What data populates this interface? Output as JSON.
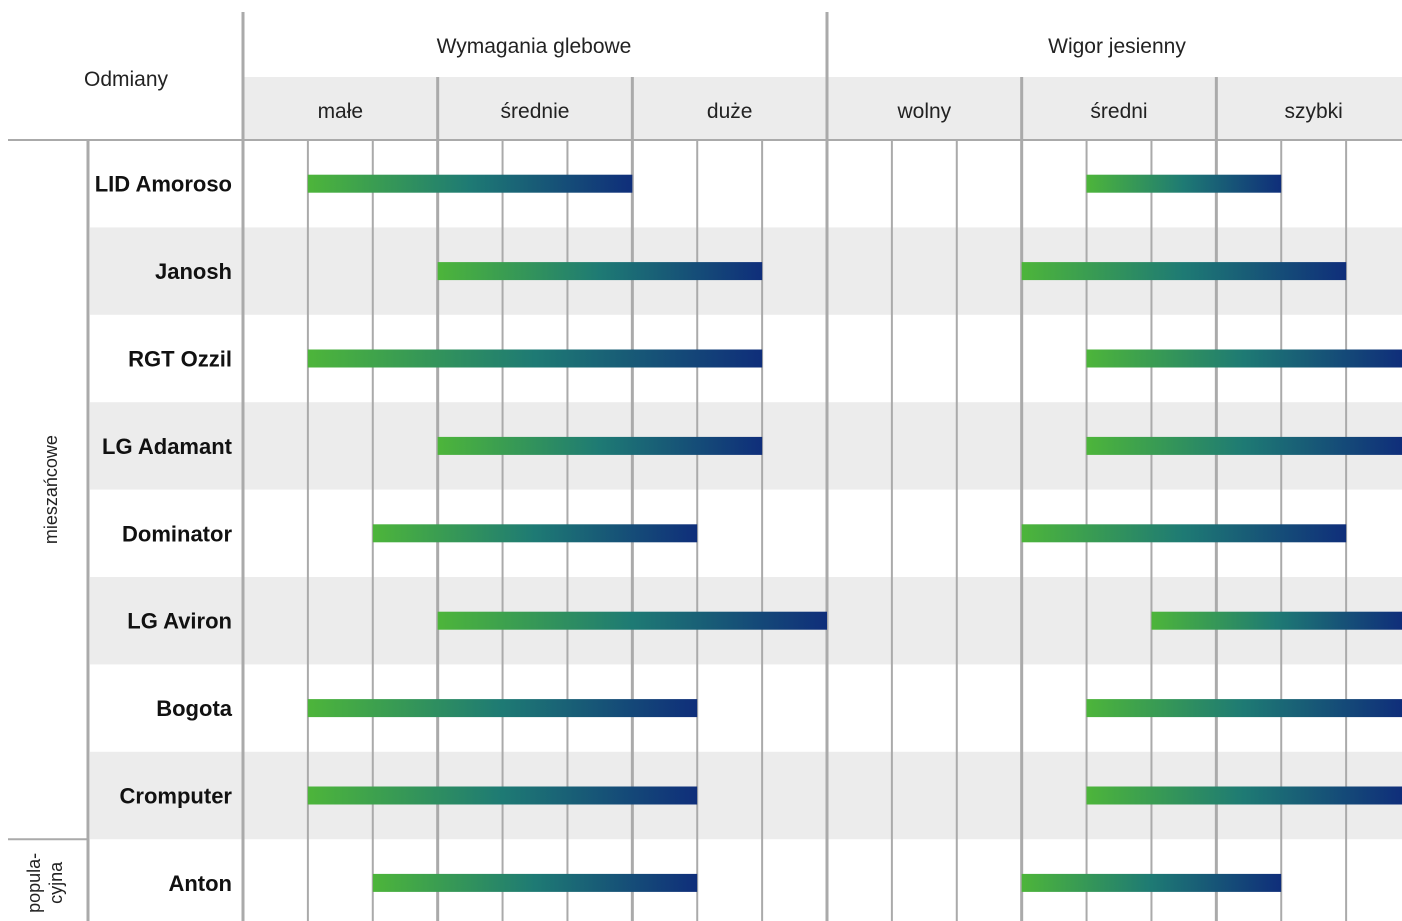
{
  "header": {
    "varieties_label": "Odmiany",
    "section1_title": "Wymagania glebowe",
    "section2_title": "Wigor jesienny"
  },
  "chart_data": {
    "type": "range-bar",
    "sections": [
      {
        "title": "Wymagania glebowe",
        "levels": [
          "małe",
          "średnie",
          "duże"
        ]
      },
      {
        "title": "Wigor jesienny",
        "levels": [
          "wolny",
          "średni",
          "szybki"
        ]
      }
    ],
    "subdivisions_per_level": 3,
    "groups": [
      {
        "name": "mieszańcowe",
        "rows": [
          "LID Amoroso",
          "Janosh",
          "RGT Ozzil",
          "LG Adamant",
          "Dominator",
          "LG Aviron",
          "Bogota",
          "Cromputer"
        ]
      },
      {
        "name": "popula-\ncyjna",
        "name_lines": [
          "popula-",
          "cyjna"
        ],
        "rows": [
          "Anton"
        ]
      }
    ],
    "note": "Bar ranges expressed in level units: 0 = start of first level, 3 = end of last level of the section.",
    "rows": [
      {
        "name": "LID Amoroso",
        "soil": [
          0.333,
          2.0
        ],
        "vigor": [
          1.333,
          2.333
        ]
      },
      {
        "name": "Janosh",
        "soil": [
          1.0,
          2.667
        ],
        "vigor": [
          1.0,
          2.667
        ]
      },
      {
        "name": "RGT Ozzil",
        "soil": [
          0.333,
          2.667
        ],
        "vigor": [
          1.333,
          3.0
        ]
      },
      {
        "name": "LG Adamant",
        "soil": [
          1.0,
          2.667
        ],
        "vigor": [
          1.333,
          3.0
        ]
      },
      {
        "name": "Dominator",
        "soil": [
          0.667,
          2.333
        ],
        "vigor": [
          1.0,
          2.667
        ]
      },
      {
        "name": "LG Aviron",
        "soil": [
          1.0,
          3.0
        ],
        "vigor": [
          1.667,
          3.0
        ]
      },
      {
        "name": "Bogota",
        "soil": [
          0.333,
          2.333
        ],
        "vigor": [
          1.333,
          3.0
        ]
      },
      {
        "name": "Cromputer",
        "soil": [
          0.333,
          2.333
        ],
        "vigor": [
          1.333,
          3.0
        ]
      },
      {
        "name": "Anton",
        "soil": [
          0.667,
          2.333
        ],
        "vigor": [
          1.0,
          2.333
        ]
      }
    ],
    "colors": {
      "bar_start": "#4db53a",
      "bar_mid": "#1e7a74",
      "bar_end": "#0f2e7a",
      "band": "#ececec",
      "line": "#aaaaaa"
    }
  }
}
